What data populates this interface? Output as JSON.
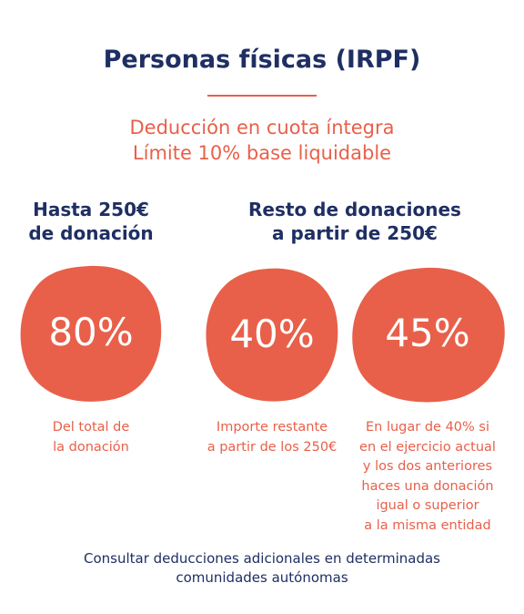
{
  "title": "Personas físicas (IRPF)",
  "subtitle": {
    "line1": "Deducción en cuota íntegra",
    "line2": "Límite 10% base liquidable"
  },
  "columns": {
    "left": {
      "heading_line1": "Hasta 250€",
      "heading_line2": "de donación"
    },
    "right": {
      "heading_line1": "Resto de donaciones",
      "heading_line2": "a partir de 250€"
    }
  },
  "items": [
    {
      "percentage": "80%",
      "note_lines": [
        "Del total de",
        "la donación"
      ]
    },
    {
      "percentage": "40%",
      "note_lines": [
        "Importe restante",
        "a partir de los 250€"
      ]
    },
    {
      "percentage": "45%",
      "note_lines": [
        "En lugar de 40% si",
        "en el ejercicio actual",
        "y los dos anteriores",
        "haces una donación",
        "igual o superior",
        "a la misma entidad"
      ]
    }
  ],
  "footer": {
    "line1": "Consultar deducciones adicionales en determinadas",
    "line2": "comunidades autónomas"
  },
  "colors": {
    "navy": "#1f2f63",
    "coral": "#e8604a"
  }
}
